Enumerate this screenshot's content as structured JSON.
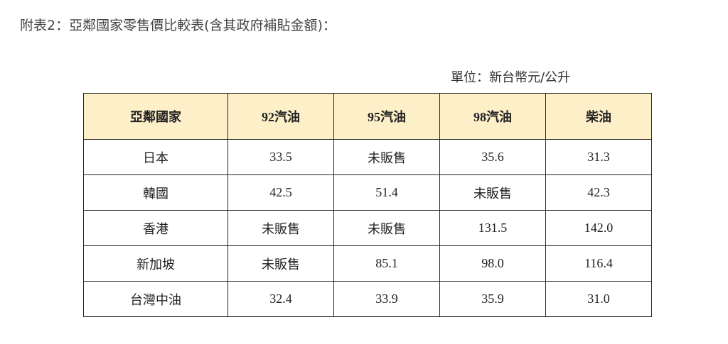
{
  "title": "附表2：亞鄰國家零售價比較表(含其政府補貼金額)：",
  "unit": "單位：新台幣元/公升",
  "colors": {
    "header_bg": "#fdf0c9",
    "border": "#222222"
  },
  "table": {
    "headers": [
      "亞鄰國家",
      "92汽油",
      "95汽油",
      "98汽油",
      "柴油"
    ],
    "rows": [
      [
        "日本",
        "33.5",
        "未販售",
        "35.6",
        "31.3"
      ],
      [
        "韓國",
        "42.5",
        "51.4",
        "未販售",
        "42.3"
      ],
      [
        "香港",
        "未販售",
        "未販售",
        "131.5",
        "142.0"
      ],
      [
        "新加坡",
        "未販售",
        "85.1",
        "98.0",
        "116.4"
      ],
      [
        "台灣中油",
        "32.4",
        "33.9",
        "35.9",
        "31.0"
      ]
    ]
  }
}
